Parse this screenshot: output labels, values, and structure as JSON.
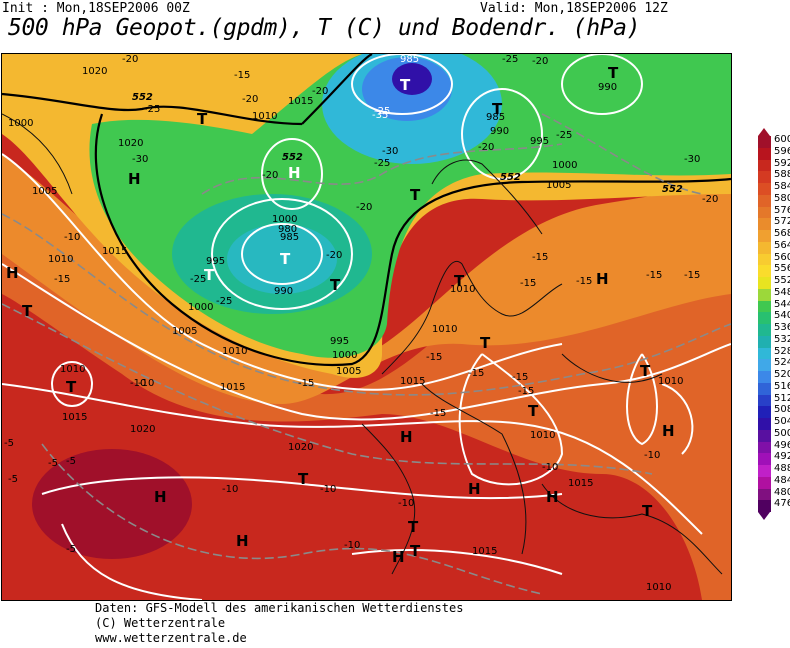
{
  "header": {
    "init": "Init : Mon,18SEP2006 00Z",
    "valid": "Valid: Mon,18SEP2006 12Z",
    "title": "500 hPa Geopot.(gpdm), T (C) und Bodendr. (hPa)"
  },
  "scale": {
    "values": [
      "600",
      "596",
      "592",
      "588",
      "584",
      "580",
      "576",
      "572",
      "568",
      "564",
      "560",
      "556",
      "552",
      "548",
      "544",
      "540",
      "536",
      "532",
      "528",
      "524",
      "520",
      "516",
      "512",
      "508",
      "504",
      "500",
      "496",
      "492",
      "488",
      "484",
      "480",
      "476"
    ],
    "colors": [
      "#a0102a",
      "#b8141e",
      "#c8281e",
      "#d43a22",
      "#dc4e24",
      "#e06428",
      "#e4782a",
      "#ea8c2c",
      "#f0a030",
      "#f4b830",
      "#f8cc30",
      "#fadc2c",
      "#e8e420",
      "#9cd83a",
      "#40c850",
      "#28c070",
      "#20b890",
      "#20b0b0",
      "#30b8d8",
      "#40a8e8",
      "#3c88e8",
      "#3064d8",
      "#2840c8",
      "#2020b8",
      "#3010a8",
      "#5810a0",
      "#8010a8",
      "#a010b8",
      "#c020c8",
      "#b010a0",
      "#801080",
      "#500060"
    ]
  },
  "map": {
    "pressure_labels": [
      "1020",
      "1015",
      "1010",
      "1000",
      "1020",
      "1005",
      "1010",
      "1015",
      "995",
      "990",
      "985",
      "1000",
      "1005",
      "995",
      "990",
      "1000",
      "1000",
      "985",
      "980",
      "1005",
      "1010",
      "1010",
      "1015",
      "1020",
      "1015",
      "1010",
      "1010",
      "1010",
      "1015",
      "1010",
      "1020",
      "1015",
      "1005",
      "1000",
      "1015",
      "1010",
      "990",
      "985",
      "995"
    ],
    "temp_labels": [
      "-20",
      "-15",
      "-25",
      "-20",
      "-25",
      "-20",
      "-30",
      "-25",
      "-35",
      "-30",
      "-25",
      "-20",
      "-20",
      "-20",
      "-25",
      "-30",
      "-20",
      "-15",
      "-25",
      "-25",
      "-20",
      "-15",
      "-10",
      "-10",
      "-10",
      "-15",
      "-15",
      "-15",
      "-15",
      "-15",
      "-15",
      "-15",
      "-10",
      "-10",
      "-10",
      "-10",
      "-10",
      "-10",
      "-5",
      "-5",
      "-5",
      "-5",
      "-5",
      "-15",
      "-15",
      "-15",
      "-20"
    ],
    "height_labels": [
      "552",
      "552",
      "552",
      "552"
    ],
    "highs_count_note": "",
    "h_label": "H",
    "t_label": "T"
  },
  "footer": {
    "line1": "Daten: GFS-Modell des amerikanischen Wetterdienstes",
    "line2": "(C) Wetterzentrale",
    "line3": "www.wetterzentrale.de"
  }
}
